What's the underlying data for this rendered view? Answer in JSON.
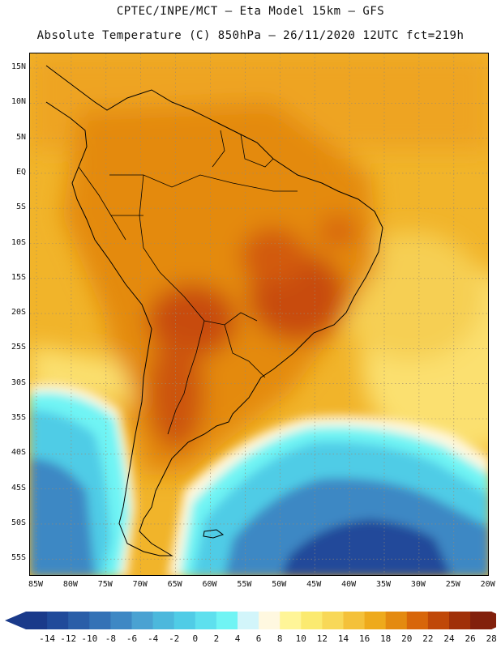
{
  "header": {
    "line1": "CPTEC/INPE/MCT —  Eta Model 15km — GFS",
    "line2": "Absolute Temperature (C) 850hPa — 26/11/2020 12UTC fct=219h"
  },
  "map": {
    "region": "South America and adjacent South Atlantic",
    "lat_labels": [
      "15N",
      "10N",
      "5N",
      "EQ",
      "5S",
      "10S",
      "15S",
      "20S",
      "25S",
      "30S",
      "35S",
      "40S",
      "45S",
      "50S",
      "55S"
    ],
    "lon_labels": [
      "85W",
      "80W",
      "75W",
      "70W",
      "65W",
      "60W",
      "55W",
      "50W",
      "45W",
      "40W",
      "35W",
      "30W",
      "25W",
      "20W"
    ]
  },
  "colorbar": {
    "labels": [
      "-14",
      "-12",
      "-10",
      "-8",
      "-6",
      "-4",
      "-2",
      "0",
      "2",
      "4",
      "6",
      "8",
      "10",
      "12",
      "14",
      "16",
      "18",
      "20",
      "22",
      "24",
      "26",
      "28"
    ],
    "colors": [
      "#1a3a8a",
      "#204a9a",
      "#2a5ea8",
      "#3472b6",
      "#3e88c4",
      "#4aa2d2",
      "#4cb8dc",
      "#50cce6",
      "#5ee0ee",
      "#70f4f4",
      "#d2f5fa",
      "#fff8e0",
      "#fff598",
      "#fbea70",
      "#f8d858",
      "#f4c13a",
      "#eeaa1c",
      "#e48a10",
      "#d8660a",
      "#c04808",
      "#a03008",
      "#82200c"
    ],
    "low_extension_color": "#1a3a8a",
    "high_extension_color": "#82200c"
  }
}
